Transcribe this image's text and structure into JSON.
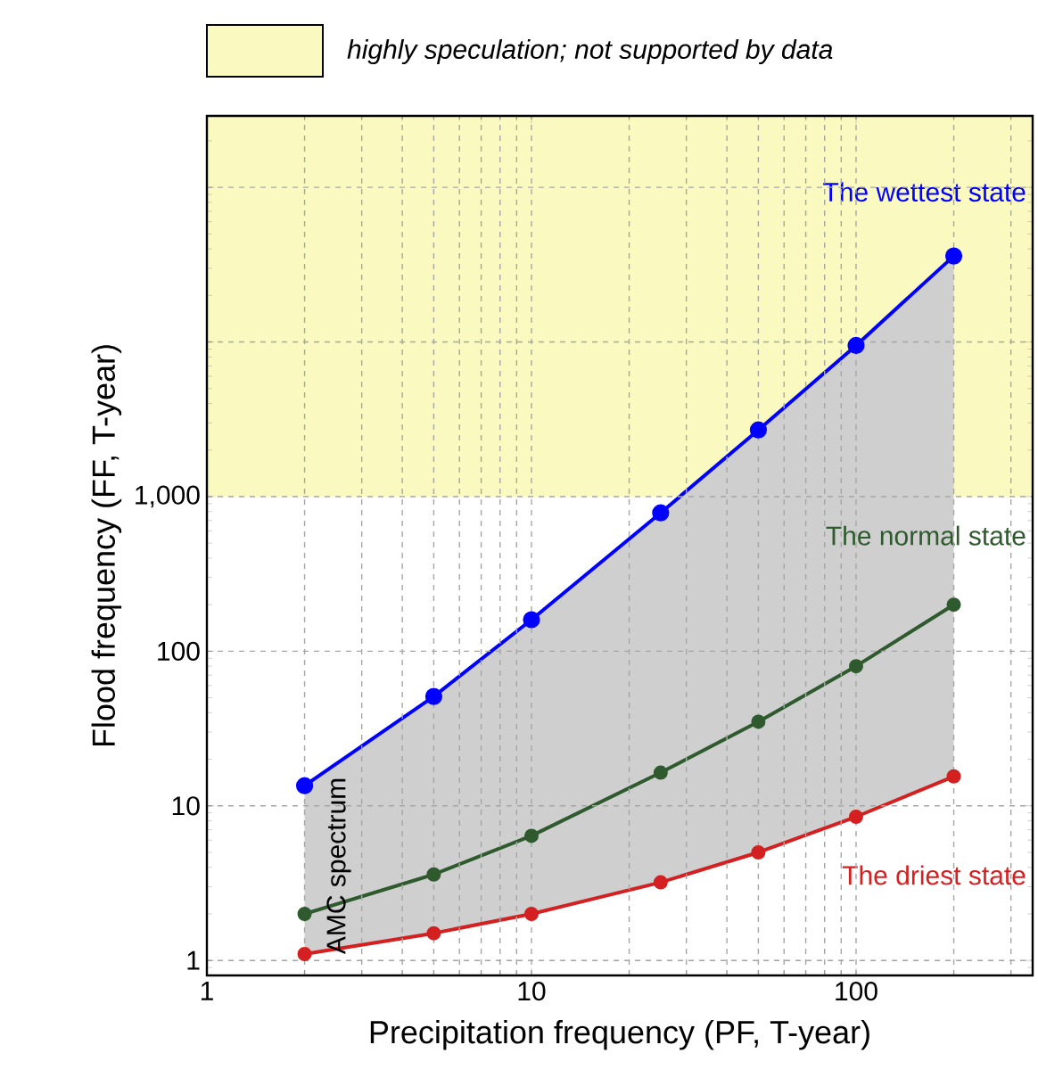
{
  "chart_data": {
    "type": "line",
    "xlabel": "Precipitation frequency (PF, T-year)",
    "ylabel": "Flood frequency (FF, T-year)",
    "x": [
      2,
      5,
      10,
      25,
      50,
      100,
      200
    ],
    "series": [
      {
        "name": "The wettest state",
        "color": "#0000ff",
        "values": [
          13.5,
          51,
          160,
          785,
          2700,
          9500,
          36000
        ]
      },
      {
        "name": "The normal state",
        "color": "#2e5a2e",
        "values": [
          2,
          3.6,
          6.4,
          16.4,
          35,
          80,
          200
        ],
        "lower": [
          1.1,
          1.5,
          2,
          3.2,
          5,
          8.5,
          15.5
        ],
        "upper": [
          13.5,
          51,
          160,
          785,
          2700,
          9500,
          36000
        ]
      },
      {
        "name": "The driest state",
        "color": "#d42020",
        "values": [
          1.1,
          1.5,
          2,
          3.2,
          5,
          8.5,
          15.5
        ]
      }
    ],
    "log": "xy",
    "xlim": [
      1,
      350
    ],
    "ylim": [
      0.8,
      290000
    ],
    "xticks": [
      1,
      10,
      100
    ],
    "yticks": [
      1,
      10,
      100,
      {
        "value": 1000,
        "label": "1,000"
      },
      {
        "value": 10000,
        "label": null
      },
      {
        "value": 100000,
        "label": null
      }
    ],
    "bands": [
      {
        "axis": "y",
        "from": 1000,
        "to": 290000,
        "label": "highly speculation; not supported by data",
        "color": "#fafac0"
      }
    ],
    "annotations": [
      "AMC spectrum"
    ],
    "grid": true,
    "legend": "top",
    "marker": "circle",
    "line_style": "solid"
  }
}
